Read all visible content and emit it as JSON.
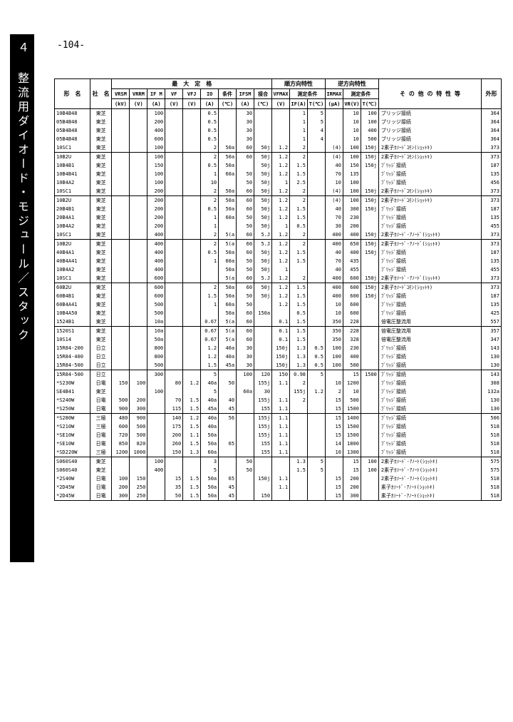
{
  "page_number": "-104-",
  "side_label": "４ 整流用ダイオード・モジュール／スタック",
  "header": {
    "col_model": "形　名",
    "col_maker": "社　名",
    "group_max": "最　大　定　格",
    "group_fwd": "順方向特性",
    "group_rev": "逆方向特性",
    "col_other": "そ の 他 の 特 性 等",
    "col_out": "外形",
    "max": [
      "VRSM",
      "VRRM",
      "IF M",
      "VF",
      "VFJ",
      "IO",
      "条件",
      "IFSM",
      "接合"
    ],
    "max_u": [
      "(kV)",
      "(V)",
      "(A)",
      "(V)",
      "(V)",
      "(A)",
      "(℃)",
      "(A)",
      "(℃)"
    ],
    "fwd": [
      "VFMAX",
      "測定条件"
    ],
    "fwd_u": [
      "(V)",
      "IF(A)",
      "T(℃)"
    ],
    "rev": [
      "IRMAX",
      "測定条件"
    ],
    "rev_u": [
      "(μA)",
      "VR(V)",
      "T(℃)"
    ]
  },
  "rows": [
    {
      "g": 0,
      "model": "10B4B48",
      "mk": "東芝",
      "c": [
        "",
        "",
        "100",
        "",
        "",
        "0.5",
        "",
        "30",
        "",
        "",
        "1",
        "5",
        "",
        "10",
        "100",
        ""
      ],
      "d": "ブリッジ接続",
      "o": "364"
    },
    {
      "g": 0,
      "model": "05B4B48",
      "mk": "東芝",
      "c": [
        "",
        "",
        "200",
        "",
        "",
        "0.5",
        "",
        "30",
        "",
        "",
        "1",
        "5",
        "",
        "10",
        "100",
        ""
      ],
      "d": "ブリッジ接続",
      "o": "364"
    },
    {
      "g": 0,
      "model": "05B4B48",
      "mk": "東芝",
      "c": [
        "",
        "",
        "400",
        "",
        "",
        "0.5",
        "",
        "30",
        "",
        "",
        "1",
        "4",
        "",
        "10",
        "400",
        ""
      ],
      "d": "ブリッジ接続",
      "o": "364"
    },
    {
      "g": 0,
      "model": "05B4B48",
      "mk": "東芝",
      "c": [
        "",
        "",
        "600",
        "",
        "",
        "0.5",
        "",
        "30",
        "",
        "",
        "1",
        "4",
        "",
        "10",
        "500",
        ""
      ],
      "d": "ブリッジ接続",
      "o": "364"
    },
    {
      "g": 0,
      "model": "10SC1",
      "mk": "東芝",
      "c": [
        "",
        "",
        "100",
        "",
        "",
        "2",
        "50a",
        "60",
        "50j",
        "1.2",
        "2",
        "",
        "(4)",
        "100",
        "150j"
      ],
      "d": "2素子ｶｿｰﾄﾞｺﾓﾝ(ｼｮｯﾄｷ)",
      "o": "373",
      "ge": true
    },
    {
      "g": 1,
      "model": "10B2U",
      "mk": "東芝",
      "c": [
        "",
        "",
        "100",
        "",
        "",
        "2",
        "50a",
        "60",
        "50j",
        "1.2",
        "2",
        "",
        "(4)",
        "100",
        "150j"
      ],
      "d": "2素子ｶｿｰﾄﾞｺﾓﾝ(ｼｮｯﾄｷ)",
      "o": "373"
    },
    {
      "g": 1,
      "model": "10B4B1",
      "mk": "東芝",
      "c": [
        "",
        "",
        "150",
        "",
        "",
        "0.5",
        "50a",
        "",
        "50j",
        "1.2",
        "1.5",
        "",
        "40",
        "150",
        "150j"
      ],
      "d": "ﾌﾞﾘｯｼﾞ接続",
      "o": "187"
    },
    {
      "g": 1,
      "model": "10B4B41",
      "mk": "東芝",
      "c": [
        "",
        "",
        "100",
        "",
        "",
        "1",
        "60a",
        "50",
        "50j",
        "1.2",
        "1.5",
        "",
        "70",
        "135",
        ""
      ],
      "d": "ﾌﾞﾘｯｼﾞ接続",
      "o": "135"
    },
    {
      "g": 1,
      "model": "10B4A2",
      "mk": "東芝",
      "c": [
        "",
        "",
        "100",
        "",
        "",
        "10",
        "",
        "50",
        "50j",
        "1",
        "2.5",
        "",
        "10",
        "100",
        ""
      ],
      "d": "ﾌﾞﾘｯｼﾞ接続",
      "o": "456"
    },
    {
      "g": 1,
      "model": "10SC1",
      "mk": "東芝",
      "c": [
        "",
        "",
        "200",
        "",
        "",
        "2",
        "50a",
        "60",
        "50j",
        "1.2",
        "2",
        "",
        "(4)",
        "100",
        "150j"
      ],
      "d": "2素子ｶｿｰﾄﾞｺﾓﾝ(ｼｮｯﾄｷ)",
      "o": "373",
      "ge": true
    },
    {
      "g": 2,
      "model": "10B2U",
      "mk": "東芝",
      "c": [
        "",
        "",
        "200",
        "",
        "",
        "2",
        "50a",
        "60",
        "50j",
        "1.2",
        "2",
        "",
        "(4)",
        "100",
        "150j"
      ],
      "d": "2素子ｶｿｰﾄﾞｺﾓﾝ(ｼｮｯﾄｷ)",
      "o": "373"
    },
    {
      "g": 2,
      "model": "20B4B1",
      "mk": "東芝",
      "c": [
        "",
        "",
        "200",
        "",
        "",
        "0.5",
        "50a",
        "60",
        "50j",
        "1.2",
        "1.5",
        "",
        "40",
        "300",
        "150j"
      ],
      "d": "ﾌﾞﾘｯｼﾞ接続",
      "o": "187"
    },
    {
      "g": 2,
      "model": "20B4A1",
      "mk": "東芝",
      "c": [
        "",
        "",
        "200",
        "",
        "",
        "1",
        "60a",
        "50",
        "50j",
        "1.2",
        "1.5",
        "",
        "70",
        "230",
        ""
      ],
      "d": "ﾌﾞﾘｯｼﾞ接続",
      "o": "135"
    },
    {
      "g": 2,
      "model": "10B4A2",
      "mk": "東芝",
      "c": [
        "",
        "",
        "200",
        "",
        "",
        "1",
        "",
        "50",
        "50j",
        "1",
        "0.5",
        "",
        "30",
        "200",
        ""
      ],
      "d": "ﾌﾞﾘｯｼﾞ接続",
      "o": "455"
    },
    {
      "g": 2,
      "model": "10SC1",
      "mk": "東芝",
      "c": [
        "",
        "",
        "400",
        "",
        "",
        "2",
        "5(a",
        "60",
        "5.J",
        "1.2",
        "2",
        "",
        "400",
        "400",
        "150j"
      ],
      "d": "2素子ｶｿｰﾄﾞ-ｱﾉｰﾄﾞ(ｼｮｯﾄｷ)",
      "o": "373",
      "ge": true
    },
    {
      "g": 3,
      "model": "10B2U",
      "mk": "東芝",
      "c": [
        "",
        "",
        "400",
        "",
        "",
        "2",
        "5(a",
        "60",
        "5.J",
        "1.2",
        "2",
        "",
        "400",
        "650",
        "150j"
      ],
      "d": "2素子ｶｿｰﾄﾞ-ｱﾉｰﾄﾞ(ｼｮｯﾄｷ)",
      "o": "373"
    },
    {
      "g": 3,
      "model": "40B4A1",
      "mk": "東芝",
      "c": [
        "",
        "",
        "400",
        "",
        "",
        "0.5",
        "50a",
        "60",
        "50j",
        "1.2",
        "1.5",
        "",
        "40",
        "400",
        "150j"
      ],
      "d": "ﾌﾞﾘｯｼﾞ接続",
      "o": "187"
    },
    {
      "g": 3,
      "model": "40B4A41",
      "mk": "東芝",
      "c": [
        "",
        "",
        "400",
        "",
        "",
        "1",
        "60a",
        "50",
        "50j",
        "1.2",
        "1.5",
        "",
        "70",
        "435",
        ""
      ],
      "d": "ﾌﾞﾘｯｼﾞ接続",
      "o": "135"
    },
    {
      "g": 3,
      "model": "10B4A2",
      "mk": "東芝",
      "c": [
        "",
        "",
        "400",
        "",
        "",
        "",
        "50a",
        "50",
        "50j",
        "1",
        "",
        "",
        "40",
        "455",
        ""
      ],
      "d": "ﾌﾞﾘｯｼﾞ接続",
      "o": "455"
    },
    {
      "g": 3,
      "model": "10SC1",
      "mk": "東芝",
      "c": [
        "",
        "",
        "600",
        "",
        "",
        "",
        "5(a",
        "60",
        "5.J",
        "1.2",
        "2",
        "",
        "400",
        "600",
        "150j"
      ],
      "d": "2素子ｶｿｰﾄﾞ-ｱﾉｰﾄﾞ(ｼｮｯﾄｷ)",
      "o": "373",
      "ge": true
    },
    {
      "g": 4,
      "model": "60B2U",
      "mk": "東芝",
      "c": [
        "",
        "",
        "600",
        "",
        "",
        "2",
        "50a",
        "60",
        "50j",
        "1.2",
        "1.5",
        "",
        "400",
        "600",
        "150j"
      ],
      "d": "2素子ｶｿｰﾄﾞｺﾓﾝ(ｼｮｯﾄｷ)",
      "o": "373"
    },
    {
      "g": 4,
      "model": "60B4B1",
      "mk": "東芝",
      "c": [
        "",
        "",
        "600",
        "",
        "",
        "1.5",
        "50a",
        "50",
        "50j",
        "1.2",
        "1.5",
        "",
        "400",
        "600",
        "150j"
      ],
      "d": "ﾌﾞﾘｯｼﾞ接続",
      "o": "187"
    },
    {
      "g": 4,
      "model": "60B4A41",
      "mk": "東芝",
      "c": [
        "",
        "",
        "500",
        "",
        "",
        "1",
        "60a",
        "50",
        "",
        "1.2",
        "1.5",
        "",
        "10",
        "600",
        ""
      ],
      "d": "ﾌﾞﾘｯｼﾞ接続",
      "o": "135"
    },
    {
      "g": 4,
      "model": "10B4A50",
      "mk": "東芝",
      "c": [
        "",
        "",
        "500",
        "",
        "",
        "",
        "50a",
        "60",
        "150a",
        "",
        "0.5",
        "",
        "10",
        "600",
        ""
      ],
      "d": "ﾌﾞﾘｯｼﾞ接続",
      "o": "425"
    },
    {
      "g": 4,
      "model": "1524B1",
      "mk": "東芝",
      "c": [
        "",
        "",
        "10a",
        "",
        "",
        "0.67",
        "5(a",
        "60",
        "",
        "0.1",
        "1.5",
        "",
        "350",
        "228",
        ""
      ],
      "d": "倍電圧整流用",
      "o": "557",
      "ge": true
    },
    {
      "g": 5,
      "model": "1520S1",
      "mk": "東芝",
      "c": [
        "",
        "",
        "10a",
        "",
        "",
        "0.67",
        "5(a",
        "60",
        "",
        "0.1",
        "1.5",
        "",
        "350",
        "228",
        ""
      ],
      "d": "倍電圧整流用",
      "o": "357"
    },
    {
      "g": 5,
      "model": "10S14",
      "mk": "東芝",
      "c": [
        "",
        "",
        "50a",
        "",
        "",
        "0.67",
        "5(a",
        "60",
        "",
        "0.1",
        "1.5",
        "",
        "350",
        "328",
        ""
      ],
      "d": "倍電圧整流用",
      "o": "347"
    },
    {
      "g": 5,
      "model": "15R84-200",
      "mk": "日立",
      "c": [
        "",
        "",
        "800",
        "",
        "",
        "1.2",
        "40a",
        "30",
        "",
        "150j",
        "1.3",
        "0.5",
        "100",
        "230",
        ""
      ],
      "d": "ﾌﾞﾘｯｼﾞ接続",
      "o": "143"
    },
    {
      "g": 5,
      "model": "15R84-400",
      "mk": "日立",
      "c": [
        "",
        "",
        "800",
        "",
        "",
        "1.2",
        "40a",
        "30",
        "",
        "150j",
        "1.3",
        "0.5",
        "100",
        "400",
        ""
      ],
      "d": "ﾌﾞﾘｯｼﾞ接続",
      "o": "130"
    },
    {
      "g": 5,
      "model": "15R84-500",
      "mk": "日立",
      "c": [
        "",
        "",
        "500",
        "",
        "",
        "1.5",
        "45a",
        "30",
        "",
        "150j",
        "1.3",
        "0.5",
        "100",
        "500",
        ""
      ],
      "d": "ﾌﾞﾘｯｼﾞ接続",
      "o": "130",
      "ge": true
    },
    {
      "g": 6,
      "model": "15R84-500",
      "mk": "日立",
      "c": [
        "",
        "",
        "300",
        "",
        "",
        "5",
        "",
        "100",
        "120",
        "150",
        "0.98",
        "5",
        "",
        "15",
        "1500",
        ""
      ],
      "d": "ﾌﾞﾘｯｼﾞ接続",
      "o": "143"
    },
    {
      "g": 6,
      "model": "*S230W",
      "mk": "日電",
      "c": [
        "150",
        "100",
        "",
        "80",
        "1.2",
        "40a",
        "50",
        "",
        "155j",
        "1.1",
        "2",
        "",
        "10",
        "1200",
        ""
      ],
      "d": "ﾌﾞﾘｯｼﾞ接続",
      "o": "308"
    },
    {
      "g": 6,
      "model": "SE4B41",
      "mk": "東芝",
      "c": [
        "",
        "",
        "100",
        "",
        "",
        "5",
        "",
        "60a",
        "30",
        "",
        "155j",
        "1.2",
        "2",
        "10",
        "",
        "",
        ""
      ],
      "d": "ﾌﾞﾘｯｼﾞ接続",
      "o": "132a"
    },
    {
      "g": 6,
      "model": "*S240W",
      "mk": "日電",
      "c": [
        "500",
        "200",
        "",
        "70",
        "1.5",
        "40a",
        "40",
        "",
        "155j",
        "1.1",
        "2",
        "",
        "15",
        "500",
        ""
      ],
      "d": "ﾌﾞﾘｯｼﾞ接続",
      "o": "130"
    },
    {
      "g": 6,
      "model": "*S250W",
      "mk": "日電",
      "c": [
        "900",
        "300",
        "",
        "115",
        "1.5",
        "45a",
        "45",
        "",
        "155",
        "1.1",
        "",
        "",
        "15",
        "1500",
        ""
      ],
      "d": "ﾌﾞﾘｯｼﾞ接続",
      "o": "130",
      "ge": true
    },
    {
      "g": 7,
      "model": "*S280W",
      "mk": "三極",
      "c": [
        "480",
        "900",
        "",
        "140",
        "1.2",
        "40a",
        "56",
        "",
        "155j",
        "1.1",
        "",
        "",
        "15",
        "1400",
        ""
      ],
      "d": "ﾌﾞﾘｯｼﾞ接続",
      "o": "506"
    },
    {
      "g": 7,
      "model": "*S210W",
      "mk": "三極",
      "c": [
        "600",
        "500",
        "",
        "175",
        "1.5",
        "40a",
        "",
        "",
        "155j",
        "1.1",
        "",
        "",
        "15",
        "1500",
        ""
      ],
      "d": "ﾌﾞﾘｯｼﾞ接続",
      "o": "518"
    },
    {
      "g": 7,
      "model": "*SE10W",
      "mk": "日電",
      "c": [
        "720",
        "500",
        "",
        "200",
        "1.1",
        "50a",
        "",
        "",
        "155j",
        "1.1",
        "",
        "",
        "15",
        "1500",
        ""
      ],
      "d": "ﾌﾞﾘｯｼﾞ接続",
      "o": "518"
    },
    {
      "g": 7,
      "model": "*SE10W",
      "mk": "日電",
      "c": [
        "850",
        "820",
        "",
        "260",
        "1.5",
        "50a",
        "65",
        "",
        "155",
        "1.1",
        "",
        "",
        "14",
        "1800",
        ""
      ],
      "d": "ﾌﾞﾘｯｼﾞ接続",
      "o": "518"
    },
    {
      "g": 7,
      "model": "*SD220W",
      "mk": "三極",
      "c": [
        "1200",
        "1000",
        "",
        "150",
        "1.3",
        "60a",
        "",
        "",
        "155",
        "1.1",
        "",
        "",
        "10",
        "1300",
        ""
      ],
      "d": "ﾌﾞﾘｯｼﾞ接続",
      "o": "518",
      "ge": true
    },
    {
      "g": 8,
      "model": "S060S40",
      "mk": "東芝",
      "c": [
        "",
        "",
        "100",
        "",
        "",
        "3",
        "",
        "50",
        "",
        "",
        "1.3",
        "5",
        "",
        "15",
        "100",
        ""
      ],
      "d": "2素子ｶｿｰﾄﾞ-ｱﾉｰﾄ(ｼｮｯﾄｷ)",
      "o": "575"
    },
    {
      "g": 8,
      "model": "S060S40",
      "mk": "東芝",
      "c": [
        "",
        "",
        "400",
        "",
        "",
        "5",
        "",
        "50",
        "",
        "",
        "1.5",
        "5",
        "",
        "15",
        "100",
        ""
      ],
      "d": "2素子ｶｿｰﾄﾞ-ｱﾉｰﾄ(ｼｮｯﾄｷ)",
      "o": "575"
    },
    {
      "g": 8,
      "model": "*2S40W",
      "mk": "日電",
      "c": [
        "100",
        "150",
        "",
        "15",
        "1.5",
        "50a",
        "65",
        "",
        "150j",
        "1.1",
        "",
        "",
        "15",
        "200",
        ""
      ],
      "d": "2素子ｶｿｰﾄﾞ-ｱﾉｰﾄ(ｼｮｯﾄｷ)",
      "o": "518"
    },
    {
      "g": 8,
      "model": "*2D45W",
      "mk": "日電",
      "c": [
        "200",
        "250",
        "",
        "35",
        "1.5",
        "50a",
        "45",
        "",
        "",
        "1.1",
        "",
        "",
        "15",
        "200",
        ""
      ],
      "d": "素子ｶｿｰﾄﾞ-ｱﾉｰﾄ(ｼｮｯﾄｷ)",
      "o": "518"
    },
    {
      "g": 8,
      "model": "*2D45W",
      "mk": "日電",
      "c": [
        "300",
        "250",
        "",
        "50",
        "1.5",
        "50a",
        "45",
        "",
        "150",
        "",
        "",
        "",
        "15",
        "300",
        ""
      ],
      "d": "素子ｶｿｰﾄﾞ-ｱﾉｰﾄ(ｼｮｯﾄｷ)",
      "o": "518",
      "ge": true
    }
  ]
}
